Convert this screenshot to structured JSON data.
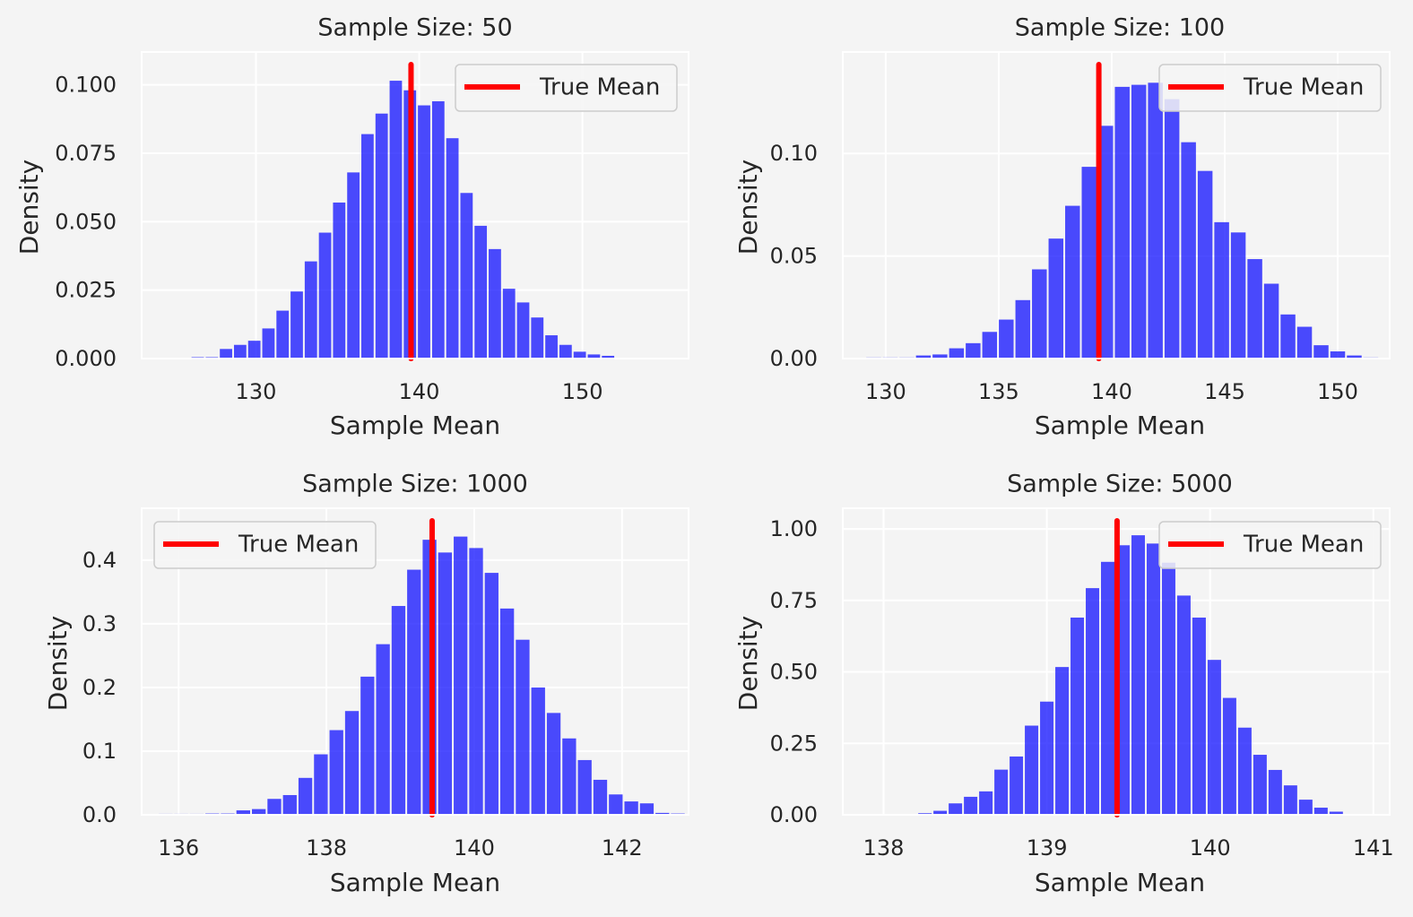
{
  "chart_data": [
    {
      "type": "bar",
      "title": "Sample Size: 50",
      "xlabel": "Sample Mean",
      "ylabel": "Density",
      "xlim": [
        123,
        156.5
      ],
      "ylim": [
        0,
        0.112
      ],
      "xticks": [
        130,
        140,
        150
      ],
      "yticks": [
        0,
        0.025,
        0.05,
        0.075,
        0.1
      ],
      "ytick_decimals": 3,
      "grid": true,
      "legend_position": "upper right",
      "bin_start": 126.0,
      "bin_width": 0.8667,
      "values": [
        0.0005,
        0.0005,
        0.0035,
        0.005,
        0.0065,
        0.011,
        0.0175,
        0.0245,
        0.0355,
        0.046,
        0.057,
        0.068,
        0.082,
        0.0895,
        0.1015,
        0.098,
        0.0925,
        0.094,
        0.0805,
        0.0605,
        0.0485,
        0.04,
        0.0255,
        0.0205,
        0.015,
        0.0085,
        0.005,
        0.0025,
        0.0015,
        0.001
      ],
      "bar_color": "#0000ff",
      "true_mean": 139.5,
      "line_color": "#ff0000",
      "legend_label": "True Mean"
    },
    {
      "type": "bar",
      "title": "Sample Size: 100",
      "xlabel": "Sample Mean",
      "ylabel": "Density",
      "xlim": [
        128.1,
        152.3
      ],
      "ylim": [
        0,
        0.1495
      ],
      "xticks": [
        130,
        135,
        140,
        145,
        150
      ],
      "yticks": [
        0,
        0.05,
        0.1
      ],
      "ytick_decimals": 2,
      "grid": true,
      "legend_position": "upper right",
      "bin_start": 129.1,
      "bin_width": 0.7333,
      "values": [
        0.0005,
        0.0005,
        0.0005,
        0.0015,
        0.002,
        0.005,
        0.0075,
        0.013,
        0.019,
        0.0285,
        0.0435,
        0.0585,
        0.0745,
        0.0935,
        0.1135,
        0.1325,
        0.1335,
        0.1345,
        0.1265,
        0.1055,
        0.0915,
        0.0665,
        0.0615,
        0.0485,
        0.0365,
        0.0215,
        0.0155,
        0.0065,
        0.0035,
        0.0015,
        0.0005
      ],
      "bar_color": "#0000ff",
      "true_mean": 139.43,
      "line_color": "#ff0000",
      "legend_label": "True Mean"
    },
    {
      "type": "bar",
      "title": "Sample Size: 1000",
      "xlabel": "Sample Mean",
      "ylabel": "Density",
      "xlim": [
        135.5,
        142.9
      ],
      "ylim": [
        0,
        0.4815
      ],
      "xticks": [
        136,
        138,
        140,
        142
      ],
      "yticks": [
        0,
        0.1,
        0.2,
        0.3,
        0.4
      ],
      "ytick_decimals": 1,
      "grid": true,
      "legend_position": "upper left",
      "bin_start": 135.72,
      "bin_width": 0.21,
      "values": [
        0.0015,
        0.0015,
        0.0015,
        0.002,
        0.002,
        0.007,
        0.009,
        0.025,
        0.031,
        0.058,
        0.095,
        0.133,
        0.163,
        0.217,
        0.268,
        0.328,
        0.385,
        0.432,
        0.412,
        0.437,
        0.419,
        0.38,
        0.324,
        0.275,
        0.2,
        0.16,
        0.12,
        0.086,
        0.055,
        0.032,
        0.021,
        0.018,
        0.003,
        0.002
      ],
      "bar_color": "#0000ff",
      "true_mean": 139.43,
      "line_color": "#ff0000",
      "legend_label": "True Mean"
    },
    {
      "type": "bar",
      "title": "Sample Size: 5000",
      "xlabel": "Sample Mean",
      "ylabel": "Density",
      "xlim": [
        137.75,
        141.1
      ],
      "ylim": [
        0,
        1.0725
      ],
      "xticks": [
        138,
        139,
        140,
        141
      ],
      "yticks": [
        0,
        0.25,
        0.5,
        0.75,
        1.0
      ],
      "ytick_decimals": 2,
      "grid": true,
      "legend_position": "upper right",
      "bin_start": 138.02,
      "bin_width": 0.0933,
      "values": [
        0.002,
        0.003,
        0.0055,
        0.014,
        0.04,
        0.063,
        0.082,
        0.158,
        0.204,
        0.312,
        0.396,
        0.517,
        0.69,
        0.793,
        0.885,
        0.943,
        0.978,
        0.949,
        0.882,
        0.767,
        0.69,
        0.542,
        0.409,
        0.305,
        0.21,
        0.157,
        0.103,
        0.053,
        0.025,
        0.011,
        0.003,
        0.0015
      ],
      "bar_color": "#0000ff",
      "true_mean": 139.43,
      "line_color": "#ff0000",
      "legend_label": "True Mean"
    }
  ]
}
